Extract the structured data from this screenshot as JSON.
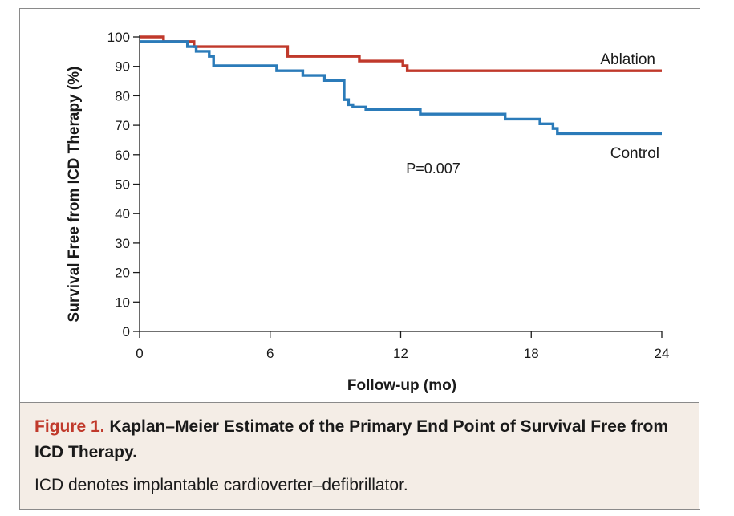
{
  "chart_data": {
    "type": "line",
    "title": "",
    "xlabel": "Follow-up (mo)",
    "ylabel": "Survival Free from ICD Therapy (%)",
    "xlim": [
      0,
      24
    ],
    "ylim": [
      0,
      100
    ],
    "xticks": [
      0,
      6,
      12,
      18,
      24
    ],
    "yticks": [
      0,
      10,
      20,
      30,
      40,
      50,
      60,
      70,
      80,
      90,
      100
    ],
    "grid": false,
    "legend": "inline labels at line ends",
    "annotation": "P=0.007",
    "step": true,
    "series": [
      {
        "name": "Ablation",
        "color": "#c0392b",
        "x": [
          0,
          1.1,
          2.5,
          6.8,
          10.1,
          12.1,
          12.3,
          24
        ],
        "y": [
          100,
          98.4,
          96.7,
          93.4,
          91.8,
          90.2,
          88.5,
          88.5
        ]
      },
      {
        "name": "Control",
        "color": "#2b7bb9",
        "x": [
          0,
          2.2,
          2.6,
          3.2,
          3.4,
          6.3,
          7.5,
          8.5,
          9.4,
          9.6,
          9.8,
          10.4,
          11.0,
          12.9,
          16.8,
          18.4,
          19.0,
          19.2,
          24
        ],
        "y": [
          98.4,
          96.7,
          95.1,
          93.4,
          90.2,
          88.5,
          86.9,
          85.2,
          78.7,
          77.0,
          76.2,
          75.4,
          75.4,
          73.8,
          72.1,
          70.5,
          68.9,
          67.2,
          67.2
        ]
      }
    ]
  },
  "caption": {
    "label": "Figure 1.",
    "title": "Kaplan–Meier Estimate of the Primary End Point of Survival Free from ICD Therapy.",
    "note": "ICD denotes implantable cardioverter–defibrillator."
  }
}
